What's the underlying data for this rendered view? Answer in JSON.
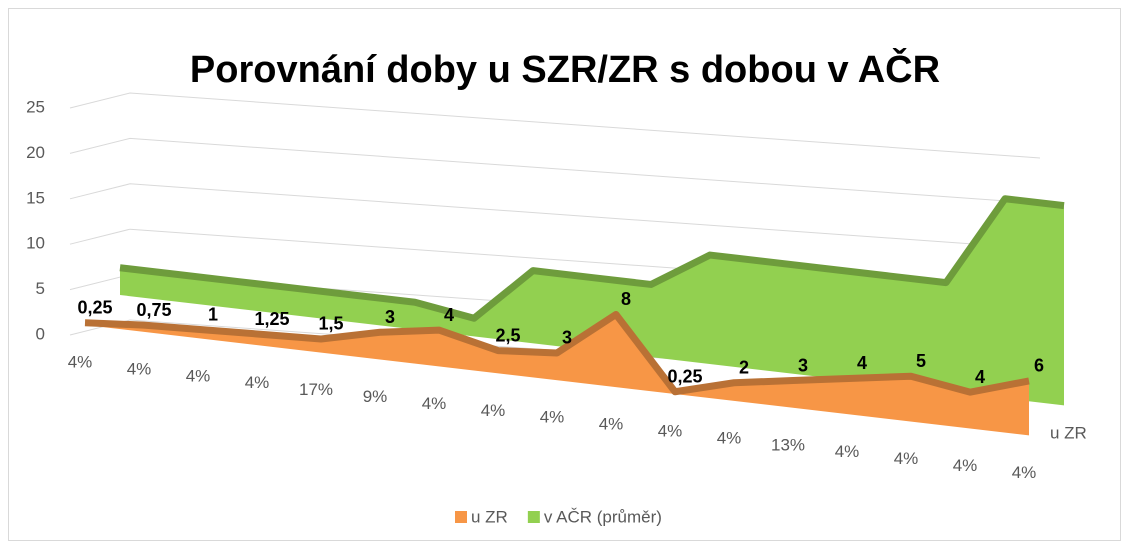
{
  "chart_data": {
    "type": "area3d",
    "title": "Porovnání doby u SZR/ZR s dobou v AČR",
    "categories": [
      "4%",
      "4%",
      "4%",
      "4%",
      "17%",
      "9%",
      "4%",
      "4%",
      "4%",
      "4%",
      "4%",
      "4%",
      "13%",
      "4%",
      "4%",
      "4%",
      "4%"
    ],
    "depth_label": "u ZR",
    "ylim": [
      0,
      25
    ],
    "yticks": [
      0,
      5,
      10,
      15,
      20,
      25
    ],
    "grid": true,
    "legend": "bottom",
    "series": [
      {
        "name": "u ZR",
        "color": "#f79646",
        "values": [
          0.25,
          0.75,
          1,
          1.25,
          1.5,
          3,
          4,
          2.5,
          3,
          8,
          0.25,
          2,
          3,
          4,
          5,
          4,
          6
        ],
        "value_labels": [
          "0,25",
          "0,75",
          "1",
          "1,25",
          "1,5",
          "3",
          "4",
          "2,5",
          "3",
          "8",
          "0,25",
          "2",
          "3",
          "4",
          "5",
          "4",
          "6"
        ]
      },
      {
        "name": "v AČR (průměr)",
        "color": "#92d050",
        "values": [
          3,
          3,
          3,
          3,
          3,
          3,
          2,
          8,
          8,
          8,
          12,
          12,
          12,
          12,
          12,
          22,
          22
        ]
      }
    ]
  }
}
